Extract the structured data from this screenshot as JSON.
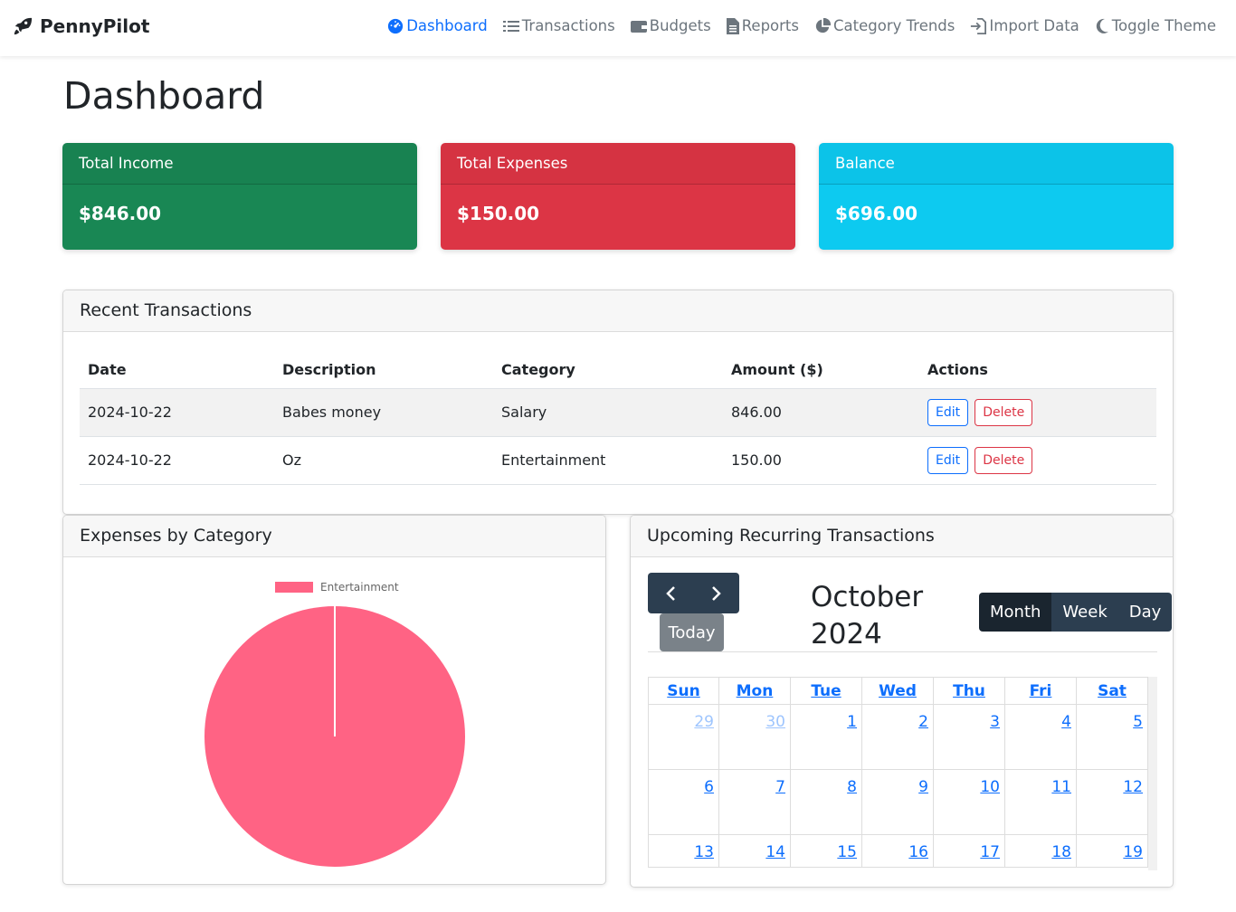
{
  "brand": {
    "name": "PennyPilot",
    "icon": "rocket-icon"
  },
  "nav": [
    {
      "label": "Dashboard",
      "icon": "tachometer-icon",
      "active": true
    },
    {
      "label": "Transactions",
      "icon": "list-icon"
    },
    {
      "label": "Budgets",
      "icon": "wallet-icon"
    },
    {
      "label": "Reports",
      "icon": "file-icon"
    },
    {
      "label": "Category Trends",
      "icon": "pie-chart-icon"
    },
    {
      "label": "Import Data",
      "icon": "import-icon"
    },
    {
      "label": "Toggle Theme",
      "icon": "moon-icon"
    }
  ],
  "page": {
    "title": "Dashboard"
  },
  "stats": {
    "income": {
      "label": "Total Income",
      "value": "$846.00",
      "color": "#198754"
    },
    "expenses": {
      "label": "Total Expenses",
      "value": "$150.00",
      "color": "#dc3545"
    },
    "balance": {
      "label": "Balance",
      "value": "$696.00",
      "color": "#0dcaf0"
    }
  },
  "recent": {
    "title": "Recent Transactions",
    "columns": [
      "Date",
      "Description",
      "Category",
      "Amount ($)",
      "Actions"
    ],
    "rows": [
      {
        "date": "2024-10-22",
        "description": "Babes money",
        "category": "Salary",
        "amount": "846.00"
      },
      {
        "date": "2024-10-22",
        "description": "Oz",
        "category": "Entertainment",
        "amount": "150.00"
      }
    ],
    "edit_label": "Edit",
    "delete_label": "Delete"
  },
  "expenses": {
    "title": "Expenses by Category",
    "chart_data": {
      "type": "pie",
      "categories": [
        "Entertainment"
      ],
      "values": [
        150
      ],
      "legend": "top",
      "colors": [
        "#ff6384"
      ]
    }
  },
  "recurring": {
    "title": "Upcoming Recurring Transactions",
    "month_title": "October 2024",
    "today_label": "Today",
    "views": [
      "Month",
      "Week",
      "Day"
    ],
    "active_view": "Month",
    "weekdays": [
      "Sun",
      "Mon",
      "Tue",
      "Wed",
      "Thu",
      "Fri",
      "Sat"
    ],
    "weeks": [
      [
        "29",
        "30",
        "1",
        "2",
        "3",
        "4",
        "5"
      ],
      [
        "6",
        "7",
        "8",
        "9",
        "10",
        "11",
        "12"
      ],
      [
        "13",
        "14",
        "15",
        "16",
        "17",
        "18",
        "19"
      ]
    ],
    "other_month_days": [
      "29",
      "30"
    ]
  }
}
